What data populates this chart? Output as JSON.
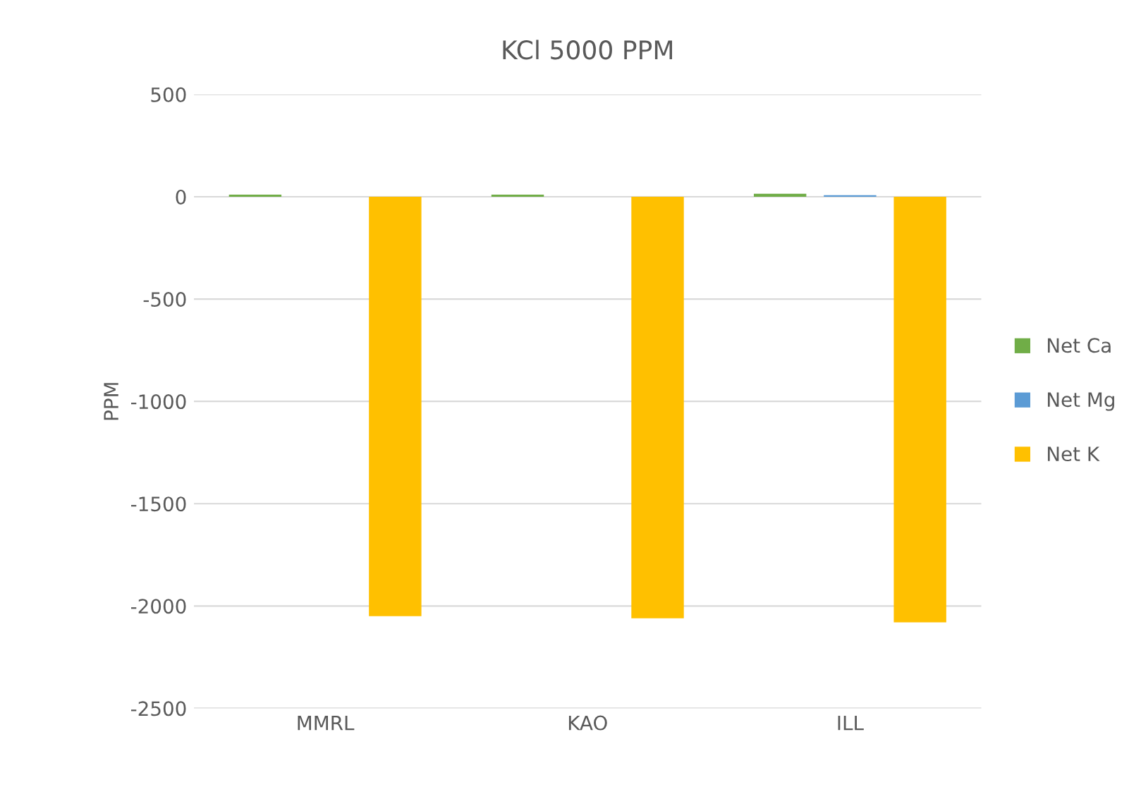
{
  "chart_data": {
    "type": "bar",
    "title": "KCl 5000 PPM",
    "ylabel": "PPM",
    "categories": [
      "MMRL",
      "KAO",
      "ILL"
    ],
    "series": [
      {
        "name": "Net Ca",
        "color": "#70ad47",
        "values": [
          10,
          10,
          15
        ]
      },
      {
        "name": "Net Mg",
        "color": "#5b9bd5",
        "values": [
          null,
          null,
          8
        ]
      },
      {
        "name": "Net K",
        "color": "#ffc000",
        "values": [
          -2050,
          -2060,
          -2080
        ]
      }
    ],
    "ylim": [
      -2500,
      500
    ],
    "yticks": [
      -2500,
      -2000,
      -1500,
      -1000,
      -500,
      0,
      500
    ],
    "grid": "y",
    "legend": "right"
  }
}
